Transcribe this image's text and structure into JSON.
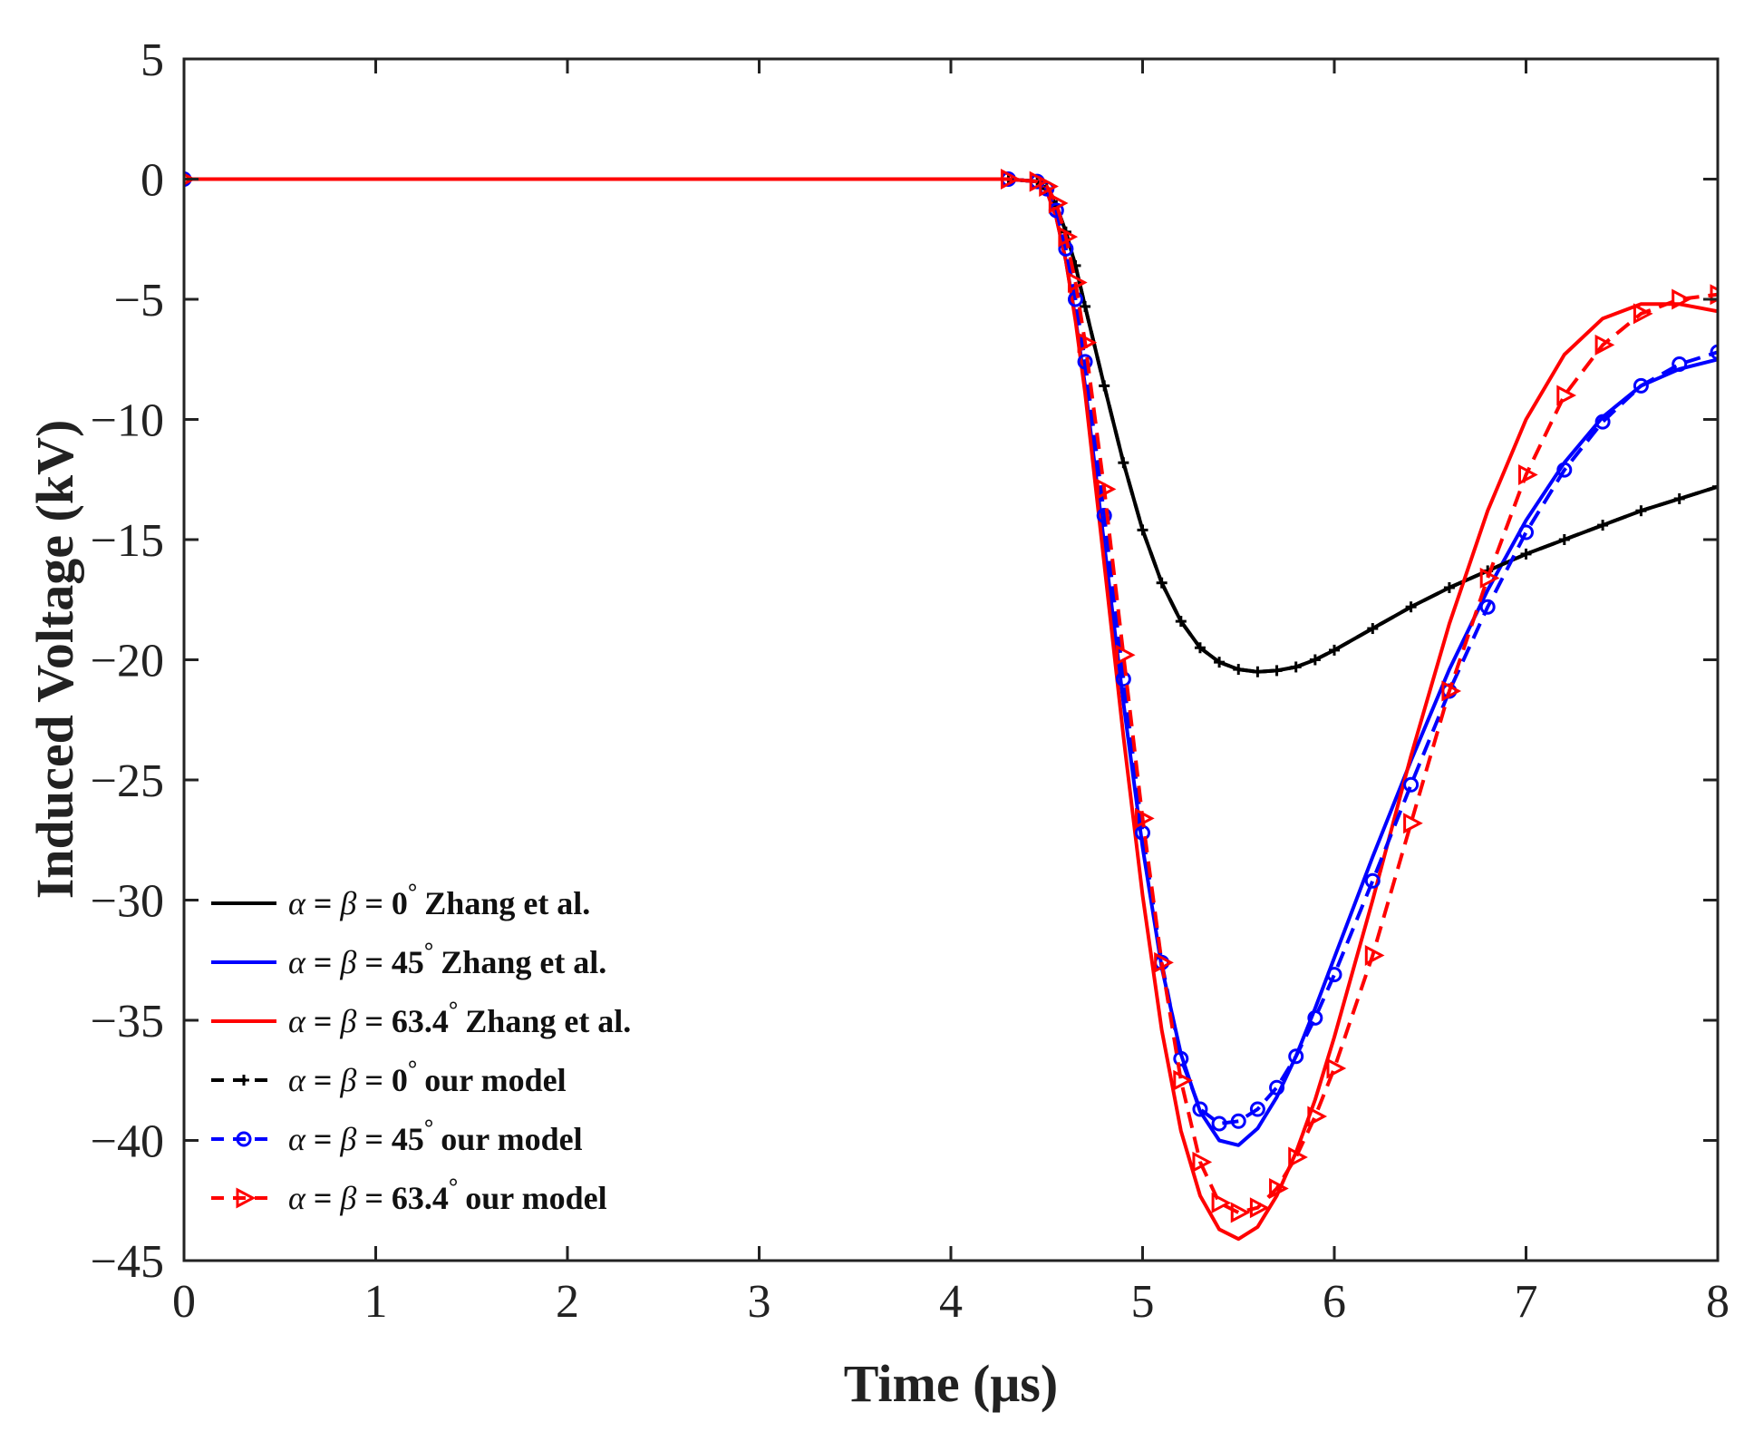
{
  "chart_data": {
    "type": "line",
    "title": "",
    "xlabel": "Time (μs)",
    "ylabel": "Induced Voltage (kV)",
    "xlim": [
      0,
      8
    ],
    "ylim": [
      -45,
      5
    ],
    "xticks": [
      0,
      1,
      2,
      3,
      4,
      5,
      6,
      7,
      8
    ],
    "yticks": [
      5,
      0,
      -5,
      -10,
      -15,
      -20,
      -25,
      -30,
      -35,
      -40,
      -45
    ],
    "ytick_labels": [
      "5",
      "0",
      "−5",
      "−10",
      "−15",
      "−20",
      "−25",
      "−30",
      "−35",
      "−40",
      "−45"
    ],
    "grid": false,
    "legend_position": "lower-left",
    "series": [
      {
        "name": "α = β = 0° Zhang et al.",
        "legend": {
          "angle": "0",
          "suffix": "Zhang et al."
        },
        "color": "#000000",
        "style": "solid",
        "marker": "none",
        "x": [
          0,
          4.3,
          4.45,
          4.5,
          4.55,
          4.6,
          4.65,
          4.7,
          4.8,
          4.9,
          5.0,
          5.1,
          5.2,
          5.3,
          5.4,
          5.5,
          5.6,
          5.7,
          5.8,
          5.9,
          6.0,
          6.2,
          6.4,
          6.6,
          6.8,
          7.0,
          7.2,
          7.4,
          7.6,
          7.8,
          8.0
        ],
        "y": [
          0,
          0,
          -0.1,
          -0.4,
          -1.1,
          -2.2,
          -3.6,
          -5.3,
          -8.6,
          -11.8,
          -14.6,
          -16.8,
          -18.4,
          -19.5,
          -20.1,
          -20.4,
          -20.5,
          -20.45,
          -20.3,
          -20.0,
          -19.6,
          -18.7,
          -17.8,
          -17.0,
          -16.3,
          -15.6,
          -15.0,
          -14.4,
          -13.8,
          -13.3,
          -12.8
        ]
      },
      {
        "name": "α = β = 45° Zhang et al.",
        "legend": {
          "angle": "45",
          "suffix": "Zhang et al."
        },
        "color": "#0000ff",
        "style": "solid",
        "marker": "none",
        "x": [
          0,
          4.3,
          4.45,
          4.5,
          4.55,
          4.6,
          4.65,
          4.7,
          4.8,
          4.9,
          5.0,
          5.1,
          5.2,
          5.3,
          5.4,
          5.5,
          5.6,
          5.7,
          5.8,
          5.9,
          6.0,
          6.2,
          6.4,
          6.6,
          6.8,
          7.0,
          7.2,
          7.4,
          7.6,
          7.8,
          8.0
        ],
        "y": [
          0,
          0,
          -0.1,
          -0.5,
          -1.6,
          -3.4,
          -5.8,
          -8.6,
          -15.2,
          -21.8,
          -27.8,
          -32.8,
          -36.4,
          -38.8,
          -40.0,
          -40.2,
          -39.5,
          -38.2,
          -36.5,
          -34.5,
          -32.4,
          -28.2,
          -24.2,
          -20.4,
          -17.1,
          -14.2,
          -11.8,
          -9.9,
          -8.6,
          -7.9,
          -7.5
        ]
      },
      {
        "name": "α = β = 63.4° Zhang et al.",
        "legend": {
          "angle": "63.4",
          "suffix": "Zhang et al."
        },
        "color": "#ff0000",
        "style": "solid",
        "marker": "none",
        "x": [
          0,
          4.3,
          4.45,
          4.5,
          4.55,
          4.6,
          4.65,
          4.7,
          4.8,
          4.9,
          5.0,
          5.1,
          5.2,
          5.3,
          5.4,
          5.5,
          5.6,
          5.7,
          5.8,
          5.9,
          6.0,
          6.2,
          6.4,
          6.6,
          6.8,
          7.0,
          7.2,
          7.4,
          7.6,
          7.8,
          8.0
        ],
        "y": [
          0,
          0,
          -0.1,
          -0.5,
          -1.6,
          -3.4,
          -5.9,
          -8.9,
          -16.0,
          -23.2,
          -29.8,
          -35.4,
          -39.6,
          -42.3,
          -43.7,
          -44.1,
          -43.6,
          -42.3,
          -40.5,
          -38.3,
          -35.7,
          -30.0,
          -24.0,
          -18.5,
          -13.8,
          -10.0,
          -7.3,
          -5.8,
          -5.2,
          -5.2,
          -5.5
        ]
      },
      {
        "name": "α = β = 0° our model",
        "legend": {
          "angle": "0",
          "suffix": "our model"
        },
        "color": "#000000",
        "style": "dashed",
        "marker": "plus",
        "x": [
          0,
          4.3,
          4.45,
          4.5,
          4.55,
          4.6,
          4.65,
          4.7,
          4.8,
          4.9,
          5.0,
          5.1,
          5.2,
          5.3,
          5.4,
          5.5,
          5.6,
          5.7,
          5.8,
          5.9,
          6.0,
          6.2,
          6.4,
          6.6,
          6.8,
          7.0,
          7.2,
          7.4,
          7.6,
          7.8,
          8.0
        ],
        "y": [
          0,
          0,
          -0.1,
          -0.4,
          -1.1,
          -2.2,
          -3.6,
          -5.3,
          -8.6,
          -11.8,
          -14.6,
          -16.8,
          -18.4,
          -19.5,
          -20.1,
          -20.4,
          -20.5,
          -20.45,
          -20.3,
          -20.0,
          -19.6,
          -18.7,
          -17.8,
          -17.0,
          -16.3,
          -15.6,
          -15.0,
          -14.4,
          -13.8,
          -13.3,
          -12.8
        ]
      },
      {
        "name": "α = β = 45° our model",
        "legend": {
          "angle": "45",
          "suffix": "our model"
        },
        "color": "#0000ff",
        "style": "dashed",
        "marker": "circle",
        "x": [
          0,
          4.3,
          4.45,
          4.5,
          4.55,
          4.6,
          4.65,
          4.7,
          4.8,
          4.9,
          5.0,
          5.1,
          5.2,
          5.3,
          5.4,
          5.5,
          5.6,
          5.7,
          5.8,
          5.9,
          6.0,
          6.2,
          6.4,
          6.6,
          6.8,
          7.0,
          7.2,
          7.4,
          7.6,
          7.8,
          8.0
        ],
        "y": [
          0,
          0,
          -0.1,
          -0.4,
          -1.3,
          -2.9,
          -5.0,
          -7.6,
          -14.0,
          -20.8,
          -27.2,
          -32.6,
          -36.6,
          -38.7,
          -39.3,
          -39.2,
          -38.7,
          -37.8,
          -36.5,
          -34.9,
          -33.1,
          -29.2,
          -25.2,
          -21.3,
          -17.8,
          -14.7,
          -12.1,
          -10.1,
          -8.6,
          -7.7,
          -7.2
        ]
      },
      {
        "name": "α = β = 63.4° our model",
        "legend": {
          "angle": "63.4",
          "suffix": "our model"
        },
        "color": "#ff0000",
        "style": "dashed",
        "marker": "triangle-right",
        "x": [
          0,
          4.3,
          4.45,
          4.5,
          4.55,
          4.6,
          4.65,
          4.7,
          4.8,
          4.9,
          5.0,
          5.1,
          5.2,
          5.3,
          5.4,
          5.5,
          5.6,
          5.7,
          5.8,
          5.9,
          6.0,
          6.2,
          6.4,
          6.6,
          6.8,
          7.0,
          7.2,
          7.4,
          7.6,
          7.8,
          8.0
        ],
        "y": [
          0,
          0,
          -0.1,
          -0.3,
          -1.0,
          -2.4,
          -4.3,
          -6.8,
          -12.9,
          -19.8,
          -26.6,
          -32.6,
          -37.5,
          -40.9,
          -42.6,
          -43.0,
          -42.8,
          -42.0,
          -40.7,
          -39.0,
          -37.0,
          -32.3,
          -26.8,
          -21.3,
          -16.6,
          -12.3,
          -9.0,
          -6.9,
          -5.6,
          -5.0,
          -4.8
        ]
      }
    ]
  }
}
